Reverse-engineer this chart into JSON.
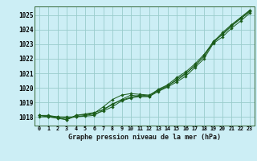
{
  "title": "Graphe pression niveau de la mer (hPa)",
  "bg_color": "#cceef5",
  "grid_color": "#99cccc",
  "line_color": "#1a5c1a",
  "x_labels": [
    "0",
    "1",
    "2",
    "3",
    "4",
    "5",
    "6",
    "7",
    "8",
    "9",
    "10",
    "11",
    "12",
    "13",
    "14",
    "15",
    "16",
    "17",
    "18",
    "19",
    "20",
    "21",
    "22",
    "23"
  ],
  "ylim": [
    1017.4,
    1025.6
  ],
  "yticks": [
    1018,
    1019,
    1020,
    1021,
    1022,
    1023,
    1024,
    1025
  ],
  "series": [
    [
      1018.1,
      1018.1,
      1018.0,
      1017.9,
      1018.0,
      1018.1,
      1018.2,
      1018.4,
      1018.7,
      1019.1,
      1019.3,
      1019.4,
      1019.4,
      1019.8,
      1020.1,
      1020.6,
      1021.0,
      1021.5,
      1022.2,
      1023.1,
      1023.7,
      1024.3,
      1024.8,
      1025.3
    ],
    [
      1018.1,
      1018.0,
      1017.9,
      1017.8,
      1018.1,
      1018.2,
      1018.3,
      1018.5,
      1018.9,
      1019.15,
      1019.35,
      1019.5,
      1019.45,
      1019.9,
      1020.2,
      1020.7,
      1021.1,
      1021.65,
      1022.3,
      1023.15,
      1023.8,
      1024.35,
      1024.85,
      1025.35
    ],
    [
      1018.0,
      1018.0,
      1017.95,
      1017.8,
      1018.1,
      1018.15,
      1018.25,
      1018.7,
      1019.2,
      1019.5,
      1019.6,
      1019.55,
      1019.5,
      1019.85,
      1020.15,
      1020.5,
      1020.95,
      1021.55,
      1022.15,
      1023.2,
      1023.65,
      1024.25,
      1024.75,
      1025.25
    ],
    [
      1018.1,
      1018.05,
      1018.0,
      1018.0,
      1018.0,
      1018.05,
      1018.1,
      1018.5,
      1018.85,
      1019.2,
      1019.5,
      1019.4,
      1019.4,
      1019.75,
      1020.05,
      1020.4,
      1020.8,
      1021.4,
      1022.0,
      1023.05,
      1023.5,
      1024.1,
      1024.6,
      1025.15
    ]
  ],
  "figsize": [
    3.2,
    2.0
  ],
  "dpi": 100
}
